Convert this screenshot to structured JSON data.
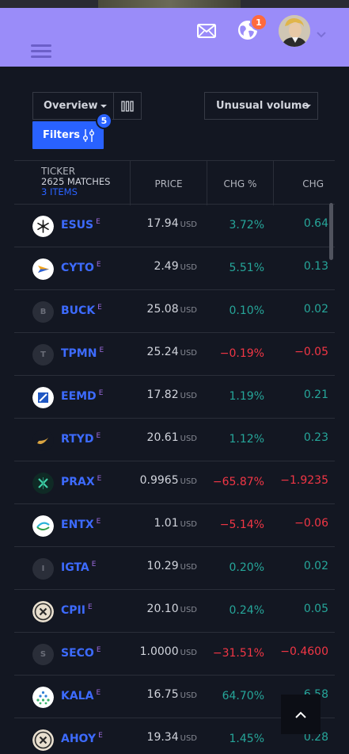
{
  "header": {
    "notification_count": "1"
  },
  "toolbar": {
    "overview_label": "Overview",
    "unusual_label": "Unusual volume",
    "filters_label": "Filters",
    "filters_count": "5"
  },
  "table": {
    "col_ticker": "TICKER",
    "matches": "2625 MATCHES",
    "items": "3 ITEMS",
    "col_price": "PRICE",
    "col_chgp": "CHG %",
    "col_chg": "CHG",
    "currency": "USD",
    "rows": [
      {
        "symbol": "ESUS",
        "flag": "E",
        "price": "17.94",
        "chgp": "3.72%",
        "chg": "0.64",
        "dir": "pos",
        "logo": "snowflake-logo"
      },
      {
        "symbol": "CYTO",
        "flag": "E",
        "price": "2.49",
        "chgp": "5.51%",
        "chg": "0.13",
        "dir": "pos",
        "logo": "cyto-logo"
      },
      {
        "symbol": "BUCK",
        "flag": "E",
        "price": "25.08",
        "chgp": "0.10%",
        "chg": "0.02",
        "dir": "pos",
        "logo": "letter-logo",
        "letter": "B"
      },
      {
        "symbol": "TPMN",
        "flag": "E",
        "price": "25.24",
        "chgp": "−0.19%",
        "chg": "−0.05",
        "dir": "neg",
        "logo": "letter-logo",
        "letter": "T"
      },
      {
        "symbol": "EEMD",
        "flag": "E",
        "price": "17.82",
        "chgp": "1.19%",
        "chg": "0.21",
        "dir": "pos",
        "logo": "eemd-logo"
      },
      {
        "symbol": "RTYD",
        "flag": "E",
        "price": "20.61",
        "chgp": "1.12%",
        "chg": "0.23",
        "dir": "pos",
        "logo": "rtyd-logo"
      },
      {
        "symbol": "PRAX",
        "flag": "E",
        "price": "0.9965",
        "chgp": "−65.87%",
        "chg": "−1.9235",
        "dir": "neg",
        "logo": "prax-logo"
      },
      {
        "symbol": "ENTX",
        "flag": "E",
        "price": "1.01",
        "chgp": "−5.14%",
        "chg": "−0.06",
        "dir": "neg",
        "logo": "entx-logo"
      },
      {
        "symbol": "IGTA",
        "flag": "E",
        "price": "10.29",
        "chgp": "0.20%",
        "chg": "0.02",
        "dir": "pos",
        "logo": "letter-logo",
        "letter": "I"
      },
      {
        "symbol": "CPII",
        "flag": "E",
        "price": "20.10",
        "chgp": "0.24%",
        "chg": "0.05",
        "dir": "pos",
        "logo": "x-logo"
      },
      {
        "symbol": "SECO",
        "flag": "E",
        "price": "1.0000",
        "chgp": "−31.51%",
        "chg": "−0.4600",
        "dir": "neg",
        "logo": "letter-logo",
        "letter": "S"
      },
      {
        "symbol": "KALA",
        "flag": "E",
        "price": "16.75",
        "chgp": "64.70%",
        "chg": "6.58",
        "dir": "pos",
        "logo": "kala-logo"
      },
      {
        "symbol": "AHOY",
        "flag": "E",
        "price": "19.34",
        "chgp": "1.45%",
        "chg": "0.28",
        "dir": "pos",
        "logo": "x-logo"
      }
    ]
  },
  "colors": {
    "header_bg": "#9a8cf9",
    "page_bg": "#131722",
    "accent": "#2962ff",
    "positive": "#26a69a",
    "negative": "#f23645",
    "badge": "#ff6a3d"
  }
}
